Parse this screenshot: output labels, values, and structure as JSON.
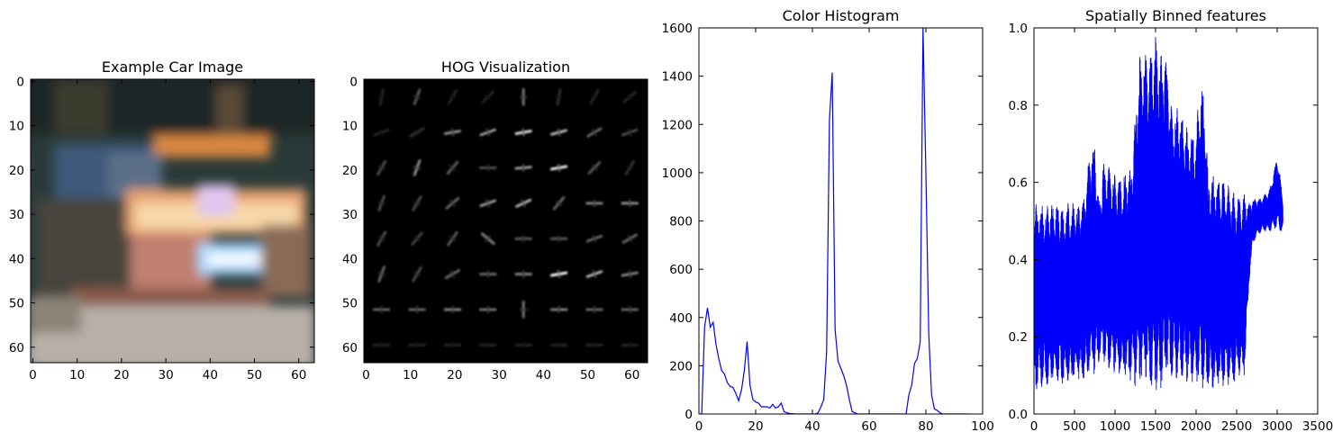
{
  "figure": {
    "titles": [
      "Example Car Image",
      "HOG Visualization",
      "Color Histogram",
      "Spatially Binned features"
    ]
  },
  "chart_data": [
    {
      "type": "image",
      "title": "Example Car Image",
      "xlim": [
        -0.5,
        63.5
      ],
      "ylim": [
        63.5,
        -0.5
      ],
      "xticks": [
        0,
        10,
        20,
        30,
        40,
        50,
        60
      ],
      "yticks": [
        0,
        10,
        20,
        30,
        40,
        50,
        60
      ]
    },
    {
      "type": "heatmap",
      "title": "HOG Visualization",
      "xlim": [
        -0.5,
        63.5
      ],
      "ylim": [
        63.5,
        -0.5
      ],
      "xticks": [
        0,
        10,
        20,
        30,
        40,
        50,
        60
      ],
      "yticks": [
        0,
        10,
        20,
        30,
        40,
        50,
        60
      ],
      "cells_per_side": 8,
      "cell_strengths": [
        [
          0.15,
          0.35,
          0.15,
          0.15,
          0.45,
          0.2,
          0.15,
          0.15
        ],
        [
          0.15,
          0.2,
          0.55,
          0.6,
          0.85,
          0.7,
          0.4,
          0.3
        ],
        [
          0.3,
          0.55,
          0.35,
          0.3,
          0.6,
          0.9,
          0.35,
          0.2
        ],
        [
          0.3,
          0.3,
          0.4,
          0.6,
          0.7,
          0.4,
          0.5,
          0.55
        ],
        [
          0.3,
          0.25,
          0.35,
          0.5,
          0.35,
          0.35,
          0.4,
          0.4
        ],
        [
          0.4,
          0.3,
          0.4,
          0.4,
          0.5,
          0.95,
          0.7,
          0.5
        ],
        [
          0.4,
          0.4,
          0.5,
          0.45,
          0.45,
          0.5,
          0.4,
          0.4
        ],
        [
          0.15,
          0.15,
          0.15,
          0.15,
          0.15,
          0.15,
          0.15,
          0.15
        ]
      ],
      "cell_angles": [
        [
          80,
          70,
          60,
          45,
          90,
          80,
          60,
          40
        ],
        [
          20,
          30,
          10,
          20,
          10,
          15,
          30,
          20
        ],
        [
          60,
          70,
          50,
          0,
          5,
          10,
          45,
          60
        ],
        [
          70,
          60,
          40,
          20,
          25,
          50,
          0,
          0
        ],
        [
          60,
          50,
          55,
          -40,
          0,
          0,
          20,
          30
        ],
        [
          70,
          60,
          30,
          0,
          0,
          10,
          20,
          10
        ],
        [
          0,
          0,
          0,
          0,
          90,
          0,
          0,
          0
        ],
        [
          0,
          0,
          0,
          0,
          0,
          0,
          0,
          0
        ]
      ]
    },
    {
      "type": "line",
      "title": "Color Histogram",
      "xlim": [
        0,
        100
      ],
      "ylim": [
        0,
        1600
      ],
      "xticks": [
        0,
        20,
        40,
        60,
        80,
        100
      ],
      "yticks": [
        0,
        200,
        400,
        600,
        800,
        1000,
        1200,
        1400,
        1600
      ],
      "series": [
        {
          "color": "#0000ff",
          "x": [
            0,
            1,
            2,
            3,
            4,
            5,
            6,
            7,
            8,
            9,
            10,
            11,
            12,
            13,
            14,
            15,
            16,
            17,
            18,
            19,
            20,
            21,
            22,
            23,
            24,
            25,
            26,
            27,
            28,
            29,
            30,
            31,
            32,
            33,
            34,
            35,
            36,
            37,
            38,
            39,
            40,
            41,
            42,
            43,
            44,
            45,
            46,
            47,
            48,
            49,
            50,
            51,
            52,
            53,
            54,
            55,
            56,
            57,
            58,
            59,
            60,
            61,
            62,
            63,
            64,
            65,
            66,
            67,
            68,
            69,
            70,
            71,
            72,
            73,
            74,
            75,
            76,
            77,
            78,
            79,
            80,
            81,
            82,
            83,
            84,
            85,
            86,
            87,
            88,
            89,
            90,
            91,
            92,
            93,
            94,
            95
          ],
          "y": [
            0,
            0,
            360,
            440,
            360,
            380,
            290,
            230,
            180,
            165,
            130,
            115,
            110,
            85,
            55,
            100,
            180,
            300,
            120,
            60,
            50,
            45,
            30,
            30,
            30,
            25,
            40,
            25,
            30,
            45,
            10,
            5,
            2,
            1,
            0,
            0,
            0,
            0,
            0,
            0,
            0,
            0,
            5,
            30,
            60,
            260,
            1220,
            1415,
            350,
            220,
            190,
            160,
            120,
            60,
            10,
            5,
            0,
            0,
            0,
            0,
            0,
            0,
            0,
            0,
            0,
            0,
            0,
            0,
            0,
            0,
            0,
            0,
            0,
            0,
            80,
            120,
            210,
            230,
            300,
            1600,
            1000,
            330,
            80,
            20,
            15,
            5,
            0,
            0,
            0,
            0,
            0,
            0,
            0,
            0,
            0,
            0
          ]
        }
      ]
    },
    {
      "type": "line",
      "title": "Spatially Binned features",
      "xlim": [
        0,
        3500
      ],
      "ylim": [
        0.0,
        1.0
      ],
      "xticks": [
        0,
        500,
        1000,
        1500,
        2000,
        2500,
        3000,
        3500
      ],
      "yticks": [
        0.0,
        0.2,
        0.4,
        0.6,
        0.8,
        1.0
      ],
      "n_points": 3072,
      "series": [
        {
          "color": "#0000ff",
          "envelope": {
            "x": [
              0,
              100,
              200,
              300,
              400,
              500,
              600,
              700,
              750,
              800,
              850,
              900,
              1000,
              1100,
              1200,
              1300,
              1350,
              1400,
              1450,
              1500,
              1550,
              1600,
              1650,
              1700,
              1750,
              1800,
              1900,
              2000,
              2050,
              2100,
              2150,
              2200,
              2300,
              2400,
              2500,
              2550,
              2600,
              2650,
              2700,
              2800,
              2900,
              3000,
              3050,
              3072
            ],
            "max": [
              0.55,
              0.55,
              0.55,
              0.55,
              0.55,
              0.55,
              0.56,
              0.7,
              0.72,
              0.55,
              0.65,
              0.65,
              0.62,
              0.62,
              0.65,
              0.93,
              0.96,
              0.92,
              0.96,
              0.98,
              0.95,
              0.95,
              0.93,
              0.8,
              0.8,
              0.8,
              0.74,
              0.74,
              0.87,
              0.86,
              0.62,
              0.62,
              0.62,
              0.6,
              0.57,
              0.57,
              0.58,
              0.55,
              0.56,
              0.56,
              0.58,
              0.67,
              0.6,
              0.55
            ],
            "min": [
              0.06,
              0.07,
              0.07,
              0.08,
              0.07,
              0.08,
              0.08,
              0.09,
              0.1,
              0.13,
              0.14,
              0.11,
              0.1,
              0.09,
              0.08,
              0.06,
              0.06,
              0.06,
              0.05,
              0.05,
              0.06,
              0.07,
              0.09,
              0.08,
              0.08,
              0.08,
              0.08,
              0.08,
              0.07,
              0.06,
              0.07,
              0.06,
              0.07,
              0.07,
              0.08,
              0.09,
              0.1,
              0.33,
              0.44,
              0.47,
              0.47,
              0.48,
              0.47,
              0.48
            ]
          }
        }
      ]
    }
  ]
}
